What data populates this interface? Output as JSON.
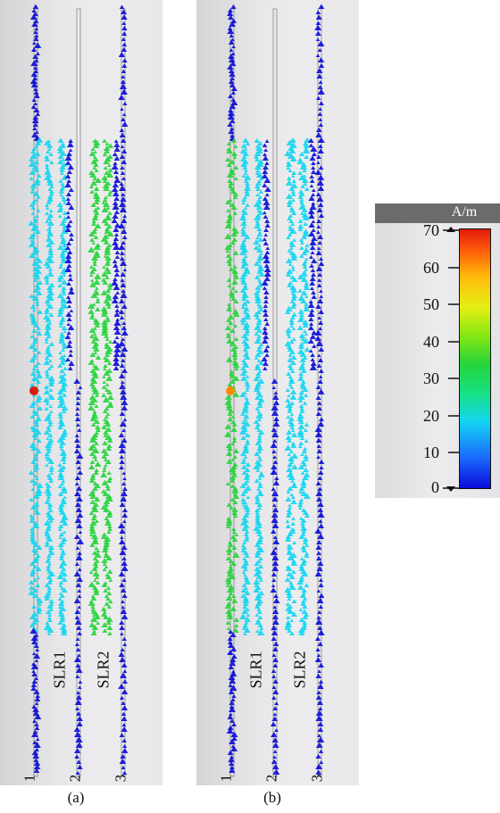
{
  "panels": [
    {
      "caption": "(a)",
      "resonator_labels": [
        "SLR1",
        "SLR2"
      ],
      "port_labels": [
        "1",
        "2",
        "3"
      ]
    },
    {
      "caption": "(b)",
      "resonator_labels": [
        "SLR1",
        "SLR2"
      ],
      "port_labels": [
        "1",
        "2",
        "3"
      ]
    }
  ],
  "legend": {
    "unit": "A/m",
    "ticks": [
      "70",
      "60",
      "50",
      "40",
      "30",
      "20",
      "10",
      "0"
    ],
    "min": 0,
    "max": 70
  },
  "colors": {
    "low": "#0a0ad8",
    "mid_low": "#14d6f0",
    "mid": "#26d53a",
    "mid_high": "#e6ef14",
    "high": "#e01a0a"
  }
}
